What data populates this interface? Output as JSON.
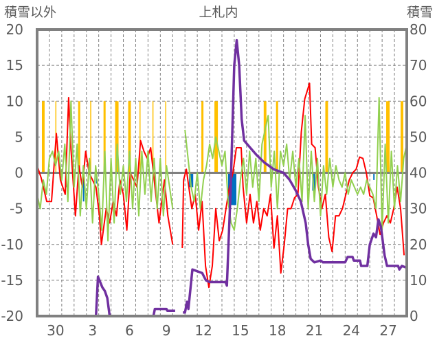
{
  "chart_data": {
    "type": "line",
    "title": "上札内",
    "ylabel_left": "積雪以外",
    "ylabel_right": "積雪",
    "x_unit": "days since Nov 29 00:00",
    "xlim": [
      0,
      30
    ],
    "ylim_left": [
      -20,
      20
    ],
    "ylim_right": [
      0,
      80
    ],
    "yticks_left": [
      "-20",
      "-15",
      "-10",
      "-5",
      "0",
      "5",
      "10",
      "15",
      "20"
    ],
    "yticks_right": [
      "0",
      "10",
      "20",
      "30",
      "40",
      "50",
      "60",
      "70",
      "80"
    ],
    "xticks": [
      {
        "t": 1.5,
        "label": "30"
      },
      {
        "t": 4.5,
        "label": "3"
      },
      {
        "t": 7.5,
        "label": "6"
      },
      {
        "t": 10.5,
        "label": "9"
      },
      {
        "t": 13.5,
        "label": "12"
      },
      {
        "t": 16.5,
        "label": "15"
      },
      {
        "t": 19.5,
        "label": "18"
      },
      {
        "t": 22.5,
        "label": "21"
      },
      {
        "t": 25.5,
        "label": "24"
      },
      {
        "t": 28.5,
        "label": "27"
      }
    ],
    "grid": true,
    "colors": {
      "yellow": "#FFC000",
      "blue": "#0070C0",
      "red": "#FF0000",
      "green": "#92D050",
      "purple": "#7030A0",
      "axis": "#808080"
    },
    "yellow_bars": [
      [
        0.39,
        0.61,
        10
      ],
      [
        1.48,
        1.56,
        10
      ],
      [
        3.33,
        3.5,
        10
      ],
      [
        4.31,
        4.39,
        10
      ],
      [
        5.39,
        5.56,
        10
      ],
      [
        6.33,
        6.61,
        10
      ],
      [
        7.39,
        7.61,
        10
      ],
      [
        8.31,
        8.39,
        10
      ],
      [
        9.36,
        9.44,
        10
      ],
      [
        10.4,
        10.48,
        10
      ],
      [
        13.33,
        13.5,
        10
      ],
      [
        14.39,
        14.67,
        10
      ],
      [
        18.39,
        18.61,
        10
      ],
      [
        19.39,
        19.56,
        10
      ],
      [
        23.39,
        23.61,
        10
      ],
      [
        28.33,
        28.61,
        10
      ],
      [
        29.5,
        29.72,
        10
      ]
    ],
    "blue_bars": [
      [
        2.33,
        2.44,
        -2
      ],
      [
        3.72,
        3.83,
        -4
      ],
      [
        4.78,
        4.89,
        -1.5
      ],
      [
        12.33,
        12.67,
        -2
      ],
      [
        15.5,
        16.17,
        -4.5
      ],
      [
        22.33,
        22.56,
        -2.5
      ],
      [
        27.28,
        27.39,
        -1
      ]
    ],
    "red_series": [
      [
        0,
        1
      ],
      [
        0.33,
        -0.7
      ],
      [
        0.78,
        -4
      ],
      [
        1.17,
        -4
      ],
      [
        1.56,
        5.5
      ],
      [
        1.89,
        -1
      ],
      [
        2.28,
        -3
      ],
      [
        2.56,
        10.5
      ],
      [
        2.72,
        4
      ],
      [
        3.11,
        -6
      ],
      [
        3.39,
        1
      ],
      [
        3.67,
        -2
      ],
      [
        3.94,
        3
      ],
      [
        4.22,
        0
      ],
      [
        4.78,
        -2
      ],
      [
        5.06,
        -6
      ],
      [
        5.22,
        -10
      ],
      [
        5.61,
        -5
      ],
      [
        5.89,
        -7
      ],
      [
        6.17,
        -4
      ],
      [
        6.44,
        -6
      ],
      [
        6.72,
        -1
      ],
      [
        7.0,
        -3
      ],
      [
        7.28,
        -8
      ],
      [
        7.56,
        0
      ],
      [
        8.11,
        -2
      ],
      [
        8.39,
        4.5
      ],
      [
        8.67,
        3
      ],
      [
        8.94,
        2
      ],
      [
        9.22,
        3.5
      ],
      [
        9.5,
        -1
      ],
      [
        9.89,
        -7
      ],
      [
        10.33,
        -1
      ],
      [
        10.61,
        -6
      ],
      [
        11.0,
        -10
      ],
      [
        11.3,
        null
      ],
      [
        11.78,
        -10.5
      ],
      [
        11.89,
        -1
      ],
      [
        12.11,
        0.5
      ],
      [
        12.56,
        -5
      ],
      [
        12.83,
        -3
      ],
      [
        13.11,
        -8
      ],
      [
        13.39,
        -4
      ],
      [
        13.67,
        -13
      ],
      [
        13.94,
        -16
      ],
      [
        14.22,
        -13
      ],
      [
        14.5,
        -5
      ],
      [
        14.78,
        -9.5
      ],
      [
        15.06,
        -8
      ],
      [
        15.33,
        -5
      ],
      [
        15.61,
        -2
      ],
      [
        15.89,
        0
      ],
      [
        16.17,
        3.5
      ],
      [
        16.56,
        3.5
      ],
      [
        16.72,
        -2
      ],
      [
        17.0,
        -7
      ],
      [
        17.28,
        -3
      ],
      [
        17.56,
        -7
      ],
      [
        17.83,
        -4
      ],
      [
        18.11,
        -8
      ],
      [
        18.39,
        -5
      ],
      [
        18.67,
        -6
      ],
      [
        18.94,
        -3
      ],
      [
        19.22,
        -10.5
      ],
      [
        19.5,
        -6
      ],
      [
        19.78,
        -14
      ],
      [
        20.06,
        -10
      ],
      [
        20.33,
        -5
      ],
      [
        20.61,
        -5
      ],
      [
        20.89,
        -3.5
      ],
      [
        21.17,
        -3
      ],
      [
        21.44,
        5.7
      ],
      [
        21.72,
        10.3
      ],
      [
        22.11,
        12.5
      ],
      [
        22.28,
        4
      ],
      [
        22.56,
        3.5
      ],
      [
        22.83,
        -2
      ],
      [
        23.11,
        -5
      ],
      [
        23.39,
        -3
      ],
      [
        23.67,
        -9
      ],
      [
        23.94,
        -11
      ],
      [
        24.22,
        -6
      ],
      [
        24.5,
        -6
      ],
      [
        24.78,
        -5
      ],
      [
        25.06,
        -3
      ],
      [
        25.33,
        -1
      ],
      [
        25.61,
        0
      ],
      [
        25.89,
        0.5
      ],
      [
        26.17,
        2.2
      ],
      [
        26.44,
        2
      ],
      [
        26.72,
        0
      ],
      [
        27.0,
        -3.2
      ],
      [
        27.28,
        -3.5
      ],
      [
        27.56,
        -6
      ],
      [
        27.83,
        -8.6
      ],
      [
        28.11,
        -7
      ],
      [
        28.39,
        -6
      ],
      [
        28.67,
        -7
      ],
      [
        28.94,
        -5
      ],
      [
        29.22,
        -2
      ],
      [
        29.5,
        -5
      ],
      [
        29.78,
        -11.5
      ]
    ],
    "green_series": {
      "start": 0,
      "step": 0.25,
      "values": [
        -3,
        -5,
        -1,
        -3,
        2,
        3,
        1,
        3,
        -1,
        4,
        -4,
        10,
        -2,
        4,
        -6,
        1,
        -5,
        2,
        -7,
        1,
        -3,
        -8,
        3,
        -9.5,
        2,
        -7,
        4,
        -3,
        1,
        -4,
        3,
        -5,
        2,
        -6,
        3,
        -3,
        3,
        -4,
        2,
        -5,
        2,
        -6,
        1,
        -2,
        -5,
        null,
        null,
        null,
        6,
        2,
        -2,
        -4,
        0,
        -5,
        -1,
        1,
        4,
        2,
        5,
        3,
        1,
        3,
        -4,
        -7,
        -8,
        -5,
        -1,
        2,
        -3,
        3,
        -2,
        2,
        -4,
        4,
        6,
        8,
        -2,
        3,
        -5,
        3,
        1,
        4,
        -1,
        3,
        -2,
        2,
        -4,
        8,
        -5,
        3,
        -4,
        2,
        -6,
        1,
        -3,
        2,
        -2,
        1,
        -1,
        -2,
        0,
        -3,
        -1,
        -2,
        -3,
        -2,
        -3,
        -1,
        -2,
        -3,
        -5,
        10.5,
        -8,
        4,
        -7,
        3,
        -5,
        1,
        -4,
        2,
        4
      ]
    },
    "purple_series_right_axis": [
      [
        0,
        0
      ],
      [
        4.78,
        0
      ],
      [
        4.94,
        11
      ],
      [
        5.3,
        8
      ],
      [
        5.5,
        7
      ],
      [
        5.7,
        5
      ],
      [
        5.89,
        0
      ],
      [
        9.44,
        0
      ],
      [
        9.56,
        2
      ],
      [
        10.5,
        2
      ],
      [
        10.56,
        1.5
      ],
      [
        11.2,
        1.5
      ],
      [
        11.5,
        null
      ],
      [
        11.83,
        1
      ],
      [
        12.0,
        1
      ],
      [
        12.17,
        4
      ],
      [
        12.28,
        2
      ],
      [
        12.6,
        13
      ],
      [
        13.4,
        12
      ],
      [
        13.7,
        10
      ],
      [
        14.0,
        9.5
      ],
      [
        15.3,
        9.5
      ],
      [
        15.4,
        8.5
      ],
      [
        15.7,
        35
      ],
      [
        16.0,
        70
      ],
      [
        16.2,
        77
      ],
      [
        16.4,
        70
      ],
      [
        16.6,
        55
      ],
      [
        16.8,
        49
      ],
      [
        17.3,
        47
      ],
      [
        17.8,
        45
      ],
      [
        18.4,
        43
      ],
      [
        19.2,
        41
      ],
      [
        20.0,
        40
      ],
      [
        20.5,
        38
      ],
      [
        21.0,
        35
      ],
      [
        21.4,
        32
      ],
      [
        21.8,
        26
      ],
      [
        22.0,
        20
      ],
      [
        22.2,
        16
      ],
      [
        22.5,
        15
      ],
      [
        23.0,
        15.5
      ],
      [
        23.2,
        15
      ],
      [
        25.0,
        15
      ],
      [
        25.2,
        16.5
      ],
      [
        25.6,
        16.5
      ],
      [
        25.7,
        15.5
      ],
      [
        26.2,
        15.5
      ],
      [
        26.3,
        14
      ],
      [
        26.8,
        14
      ],
      [
        27.0,
        20
      ],
      [
        27.3,
        23
      ],
      [
        27.5,
        22
      ],
      [
        27.7,
        27
      ],
      [
        27.9,
        25
      ],
      [
        28.2,
        17
      ],
      [
        28.4,
        14
      ],
      [
        29.3,
        14
      ],
      [
        29.4,
        13
      ],
      [
        29.6,
        14
      ],
      [
        30,
        13.5
      ]
    ]
  }
}
